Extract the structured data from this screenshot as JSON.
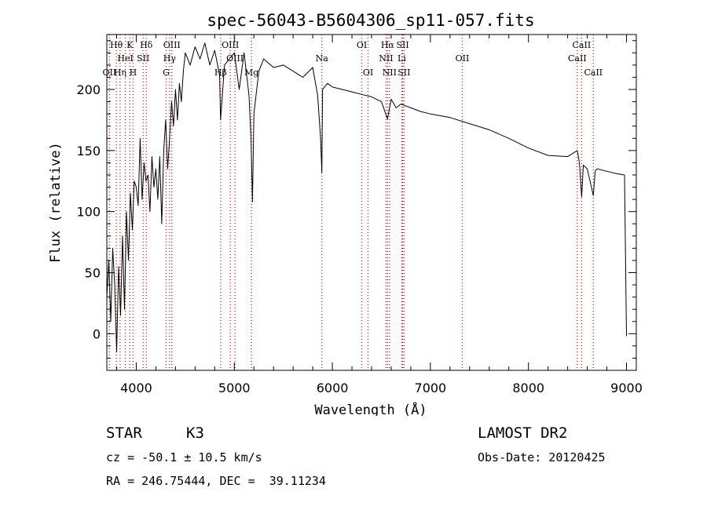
{
  "chart_data": {
    "type": "line",
    "title": "spec-56043-B5604306_sp11-057.fits",
    "xlabel": "Wavelength (Å)",
    "ylabel": "Flux (relative)",
    "xlim": [
      3700,
      9100
    ],
    "ylim": [
      -30,
      245
    ],
    "xticks": [
      4000,
      5000,
      6000,
      7000,
      8000,
      9000
    ],
    "yticks": [
      0,
      50,
      100,
      150,
      200
    ],
    "series": [
      {
        "x": [
          3700,
          3720,
          3740,
          3760,
          3780,
          3800,
          3820,
          3840,
          3860,
          3880,
          3900,
          3920,
          3940,
          3960,
          3980,
          4000,
          4020,
          4040,
          4060,
          4080,
          4100,
          4120,
          4140,
          4160,
          4180,
          4200,
          4220,
          4240,
          4260,
          4280,
          4300,
          4320,
          4340,
          4360,
          4380,
          4400,
          4420,
          4440,
          4460,
          4480,
          4500,
          4550,
          4600,
          4650,
          4700,
          4750,
          4800,
          4850,
          4860,
          4900,
          4950,
          5000,
          5050,
          5100,
          5150,
          5170,
          5185,
          5200,
          5250,
          5300,
          5400,
          5500,
          5600,
          5700,
          5800,
          5850,
          5880,
          5893,
          5900,
          5950,
          6000,
          6100,
          6200,
          6300,
          6400,
          6500,
          6563,
          6600,
          6650,
          6700,
          6800,
          6900,
          7000,
          7200,
          7400,
          7600,
          7800,
          8000,
          8200,
          8400,
          8498,
          8520,
          8542,
          8560,
          8600,
          8662,
          8680,
          8700,
          8800,
          8900,
          8980,
          9000
        ],
        "y": [
          30,
          60,
          10,
          70,
          40,
          -15,
          55,
          15,
          80,
          20,
          100,
          60,
          115,
          85,
          125,
          120,
          105,
          160,
          110,
          140,
          125,
          130,
          100,
          145,
          120,
          135,
          110,
          145,
          90,
          150,
          175,
          135,
          160,
          190,
          170,
          200,
          175,
          205,
          190,
          215,
          230,
          220,
          235,
          225,
          238,
          220,
          232,
          212,
          175,
          220,
          225,
          230,
          200,
          230,
          195,
          160,
          108,
          180,
          215,
          225,
          218,
          220,
          215,
          210,
          218,
          195,
          160,
          132,
          200,
          205,
          202,
          200,
          198,
          196,
          194,
          190,
          176,
          192,
          185,
          188,
          185,
          182,
          180,
          177,
          172,
          167,
          160,
          152,
          146,
          145,
          150,
          140,
          112,
          138,
          135,
          113,
          133,
          135,
          133,
          131,
          130,
          -2
        ]
      }
    ],
    "spectral_lines": [
      {
        "label": "Hθ",
        "x": 3797,
        "row": 0
      },
      {
        "label": "K",
        "x": 3934,
        "row": 0
      },
      {
        "label": "Hδ",
        "x": 4102,
        "row": 0
      },
      {
        "label": "OIII",
        "x": 4363,
        "row": 0
      },
      {
        "label": "OIII",
        "x": 4959,
        "row": 0
      },
      {
        "label": "OI",
        "x": 6300,
        "row": 0
      },
      {
        "label": "Hα",
        "x": 6563,
        "row": 0
      },
      {
        "label": "SII",
        "x": 6717,
        "row": 0
      },
      {
        "label": "CaII",
        "x": 8542,
        "row": 0
      },
      {
        "label": "HeI",
        "x": 3889,
        "row": 1
      },
      {
        "label": "SII",
        "x": 4070,
        "row": 1
      },
      {
        "label": "Hγ",
        "x": 4340,
        "row": 1
      },
      {
        "label": "OIII",
        "x": 5007,
        "row": 1
      },
      {
        "label": "Na",
        "x": 5893,
        "row": 1
      },
      {
        "label": "NII",
        "x": 6548,
        "row": 1
      },
      {
        "label": "Li",
        "x": 6708,
        "row": 1
      },
      {
        "label": "OII",
        "x": 7325,
        "row": 1
      },
      {
        "label": "CaII",
        "x": 8498,
        "row": 1
      },
      {
        "label": "OII",
        "x": 3727,
        "row": 2
      },
      {
        "label": "Hη",
        "x": 3835,
        "row": 2
      },
      {
        "label": "H",
        "x": 3968,
        "row": 2
      },
      {
        "label": "G",
        "x": 4305,
        "row": 2
      },
      {
        "label": "Hβ",
        "x": 4861,
        "row": 2
      },
      {
        "label": "Mg",
        "x": 5175,
        "row": 2
      },
      {
        "label": "OI",
        "x": 6364,
        "row": 2
      },
      {
        "label": "NII",
        "x": 6583,
        "row": 2
      },
      {
        "label": "SII",
        "x": 6731,
        "row": 2
      },
      {
        "label": "CaII",
        "x": 8662,
        "row": 2
      }
    ],
    "line_color": "#000000",
    "marker_color": "#cc0000",
    "grid": false
  },
  "footer": {
    "object_class": "STAR",
    "subclass": "K3",
    "redshift": "cz = -50.1 ± 10.5 km/s",
    "coordinates": "RA = 246.75444, DEC =  39.11234",
    "survey": "LAMOST DR2",
    "obs_date": "Obs-Date: 20120425"
  }
}
